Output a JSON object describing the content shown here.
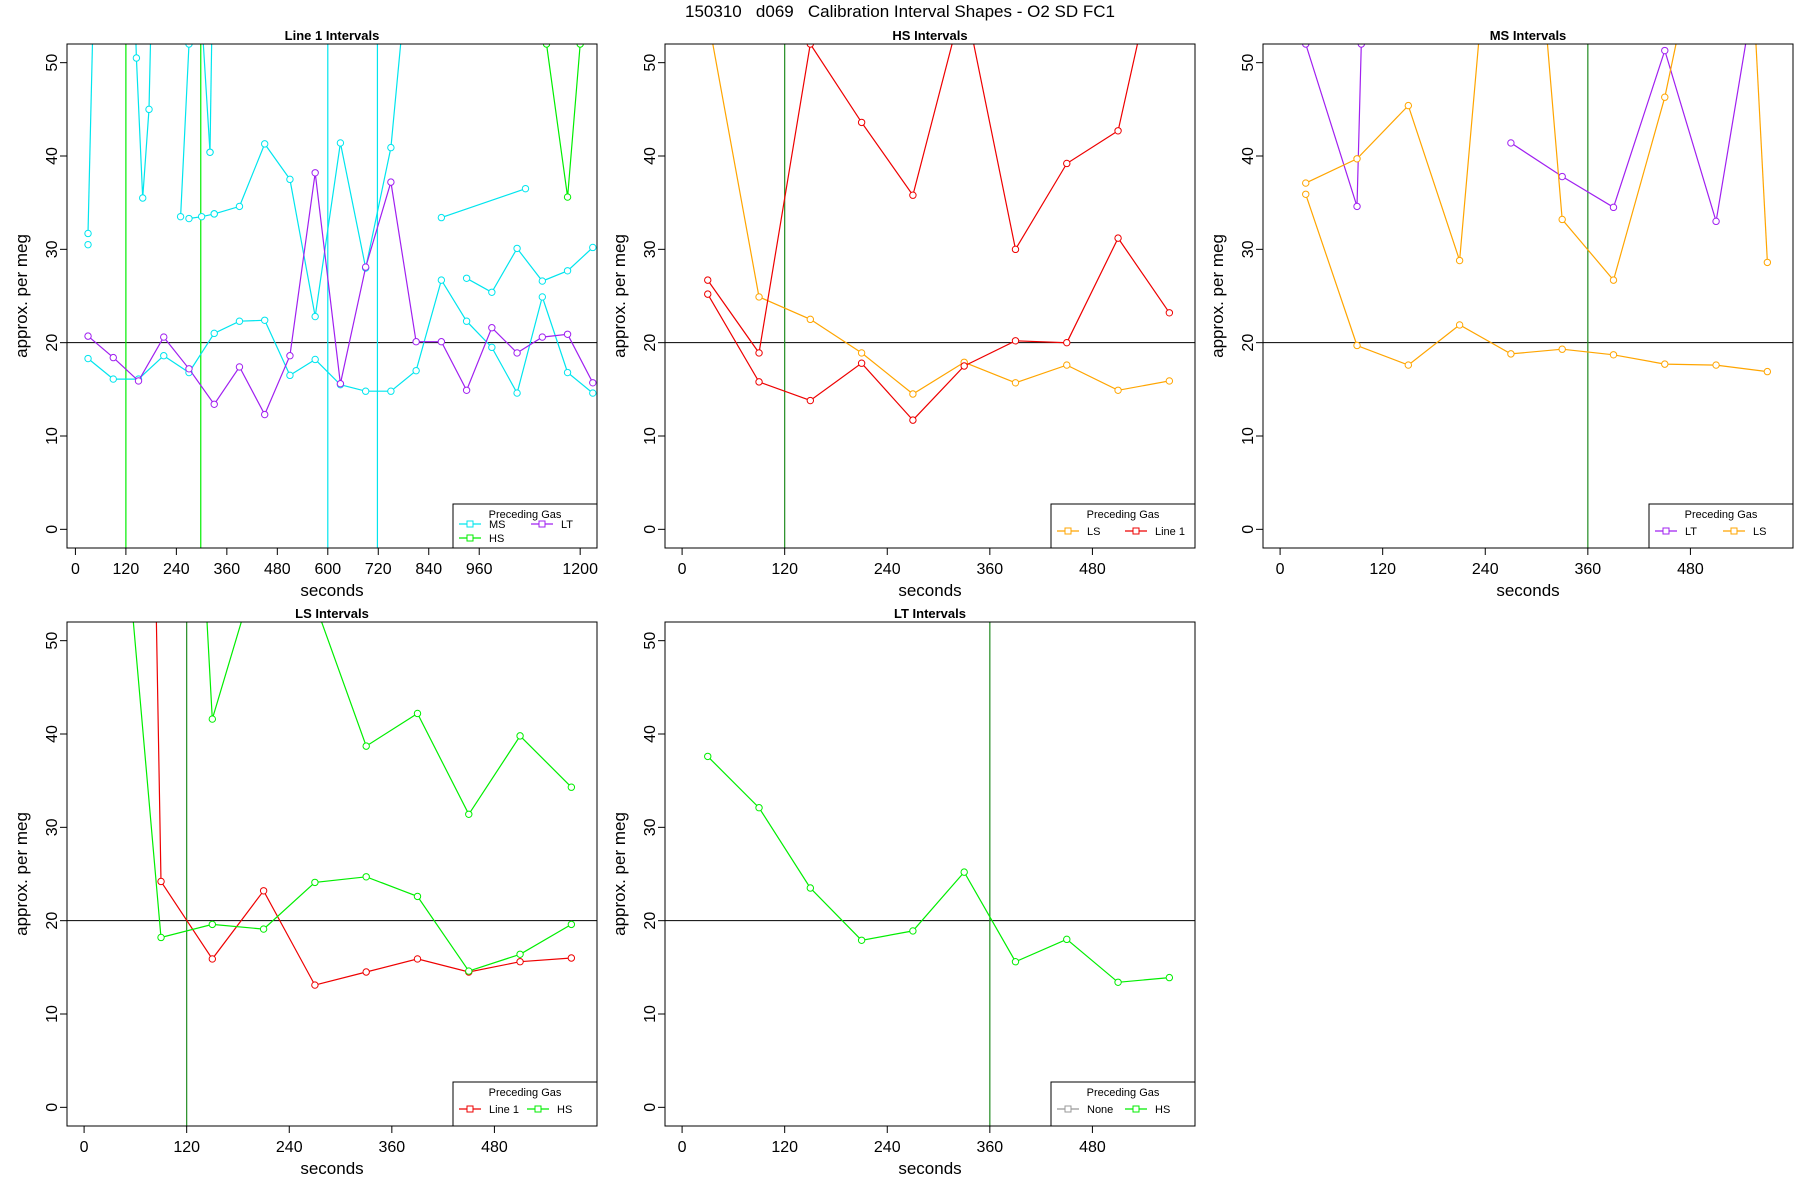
{
  "title": "150310   d069   Calibration Interval Shapes - O2 SD FC1",
  "colors": {
    "MS": "#00e5ee",
    "HS": "#00ee00",
    "LT": "#a020f0",
    "LS": "#ffa500",
    "Line 1": "#ee0000",
    "None": "#999999",
    "reference": "#000000",
    "marker": "#228b22"
  },
  "chart_data": [
    {
      "type": "line",
      "title": "Line 1 Intervals",
      "xlabel": "seconds",
      "ylabel": "approx. per meg",
      "xlim": [
        -20,
        1240
      ],
      "ylim": [
        -2,
        52
      ],
      "xticks": [
        0,
        120,
        240,
        360,
        480,
        600,
        720,
        840,
        960,
        1200
      ],
      "yticks": [
        0,
        10,
        20,
        30,
        40,
        50
      ],
      "hline": 20,
      "legend": {
        "title": "Preceding Gas",
        "entries": [
          "MS",
          "LT",
          "HS"
        ]
      },
      "vlines": [
        {
          "x": 120,
          "series": "HS"
        },
        {
          "x": 298,
          "series": "HS"
        },
        {
          "x": 600,
          "series": "MS"
        },
        {
          "x": 718,
          "series": "MS"
        }
      ],
      "series": [
        {
          "name": "MS",
          "x": [
            30,
            50
          ],
          "y": [
            31.7,
            70
          ]
        },
        {
          "name": "MS",
          "x": [
            125,
            145,
            160,
            175,
            180
          ],
          "y": [
            80,
            50.5,
            35.5,
            45,
            55
          ]
        },
        {
          "name": "MS",
          "x": [
            250,
            270,
            300,
            320
          ],
          "y": [
            33.5,
            52,
            55,
            40.4
          ]
        },
        {
          "name": "MS",
          "x": [
            320,
            330
          ],
          "y": [
            40.4,
            70
          ]
        },
        {
          "name": "MS",
          "x": [
            30,
            90,
            150,
            210,
            270,
            330,
            390,
            450,
            510,
            570,
            630,
            690,
            750,
            810,
            870,
            930,
            990,
            1050,
            1110,
            1170,
            1230
          ],
          "y": [
            18.3,
            16.1,
            16.1,
            18.6,
            16.8,
            21.0,
            22.3,
            22.4,
            16.5,
            18.2,
            15.5,
            14.8,
            14.8,
            17.0,
            26.7,
            22.3,
            19.5,
            14.6,
            24.9,
            16.8,
            14.6
          ]
        },
        {
          "name": "MS",
          "x": [
            30
          ],
          "y": [
            30.5
          ]
        },
        {
          "name": "MS",
          "x": [
            330,
            300,
            270
          ],
          "y": [
            33.8,
            33.5,
            33.3
          ]
        },
        {
          "name": "MS",
          "x": [
            330,
            390,
            450,
            510,
            570,
            630,
            690,
            750,
            790
          ],
          "y": [
            33.8,
            34.6,
            41.3,
            37.5,
            22.8,
            41.4,
            28.0,
            40.9,
            60
          ]
        },
        {
          "name": "MS",
          "x": [
            870,
            1070
          ],
          "y": [
            33.4,
            36.5
          ]
        },
        {
          "name": "MS",
          "x": [
            930,
            990,
            1050,
            1110,
            1170,
            1230
          ],
          "y": [
            26.9,
            25.4,
            30.1,
            26.6,
            27.7,
            30.2
          ]
        },
        {
          "name": "HS",
          "x": [
            1120,
            1170,
            1200
          ],
          "y": [
            52,
            35.6,
            52
          ]
        },
        {
          "name": "LT",
          "x": [
            30,
            90,
            150,
            210,
            270,
            330,
            390,
            450,
            510,
            570,
            630,
            690,
            750,
            810,
            870,
            930,
            990,
            1050,
            1110,
            1170,
            1230
          ],
          "y": [
            20.7,
            18.4,
            15.9,
            20.6,
            17.2,
            13.4,
            17.4,
            12.3,
            18.6,
            38.2,
            15.6,
            28.1,
            37.2,
            20.1,
            20.1,
            14.9,
            21.6,
            18.9,
            20.6,
            20.9,
            15.7
          ]
        }
      ]
    },
    {
      "type": "line",
      "title": "HS Intervals",
      "xlabel": "seconds",
      "ylabel": "approx. per meg",
      "xlim": [
        -20,
        600
      ],
      "ylim": [
        -2,
        52
      ],
      "xticks": [
        0,
        120,
        240,
        360,
        480
      ],
      "yticks": [
        0,
        10,
        20,
        30,
        40,
        50
      ],
      "hline": 20,
      "legend": {
        "title": "Preceding Gas",
        "entries": [
          "LS",
          "Line 1"
        ]
      },
      "vlines": [
        {
          "x": 120,
          "series": "marker"
        }
      ],
      "series": [
        {
          "name": "LS",
          "x": [
            30,
            90,
            150,
            210,
            270,
            330,
            390,
            450,
            510,
            570
          ],
          "y": [
            55,
            24.9,
            22.5,
            18.9,
            14.5,
            17.9,
            15.7,
            17.6,
            14.9,
            15.9
          ]
        },
        {
          "name": "Line 1",
          "x": [
            30,
            90,
            150,
            210,
            270,
            330,
            390,
            450,
            510,
            570
          ],
          "y": [
            25.2,
            15.8,
            13.8,
            17.8,
            11.7,
            17.5,
            20.2,
            20.0,
            31.2,
            23.2
          ]
        },
        {
          "name": "Line 1",
          "x": [
            30,
            90,
            150,
            210,
            270,
            330,
            390,
            450,
            510,
            540
          ],
          "y": [
            26.7,
            18.9,
            52,
            43.6,
            35.8,
            57,
            30.0,
            39.2,
            42.7,
            55
          ]
        }
      ]
    },
    {
      "type": "line",
      "title": "MS Intervals",
      "xlabel": "seconds",
      "ylabel": "approx. per meg",
      "xlim": [
        -20,
        600
      ],
      "ylim": [
        -2,
        52
      ],
      "xticks": [
        0,
        120,
        240,
        360,
        480
      ],
      "yticks": [
        0,
        10,
        20,
        30,
        40,
        50
      ],
      "hline": 20,
      "legend": {
        "title": "Preceding Gas",
        "entries": [
          "LT",
          "LS"
        ]
      },
      "vlines": [
        {
          "x": 360,
          "series": "marker"
        }
      ],
      "series": [
        {
          "name": "LT",
          "x": [
            30,
            90,
            95
          ],
          "y": [
            52,
            34.6,
            52
          ]
        },
        {
          "name": "LT",
          "x": [
            270,
            330,
            390,
            450,
            510,
            550
          ],
          "y": [
            41.4,
            37.8,
            34.5,
            51.3,
            33.0,
            55
          ]
        },
        {
          "name": "LS",
          "x": [
            30,
            90,
            150,
            210,
            270,
            330,
            390,
            450,
            510,
            570
          ],
          "y": [
            35.9,
            19.7,
            17.6,
            21.9,
            18.8,
            19.3,
            18.7,
            17.7,
            17.6,
            16.9
          ]
        },
        {
          "name": "LS",
          "x": [
            30,
            90,
            150,
            210,
            235
          ],
          "y": [
            37.1,
            39.7,
            45.4,
            28.8,
            55
          ]
        },
        {
          "name": "LS",
          "x": [
            310,
            330,
            390,
            450,
            470
          ],
          "y": [
            55,
            33.2,
            26.7,
            46.3,
            55
          ]
        },
        {
          "name": "LS",
          "x": [
            555,
            570
          ],
          "y": [
            55,
            28.6
          ]
        }
      ]
    },
    {
      "type": "line",
      "title": "LS Intervals",
      "xlabel": "seconds",
      "ylabel": "approx. per meg",
      "xlim": [
        -20,
        600
      ],
      "ylim": [
        -2,
        52
      ],
      "xticks": [
        0,
        120,
        240,
        360,
        480
      ],
      "yticks": [
        0,
        10,
        20,
        30,
        40,
        50
      ],
      "hline": 20,
      "legend": {
        "title": "Preceding Gas",
        "entries": [
          "Line 1",
          "HS"
        ]
      },
      "vlines": [
        {
          "x": 120,
          "series": "marker"
        }
      ],
      "series": [
        {
          "name": "Line 1",
          "x": [
            84,
            90,
            150,
            210,
            270,
            330,
            390,
            450,
            510,
            570
          ],
          "y": [
            55,
            24.2,
            15.9,
            23.2,
            13.1,
            14.5,
            15.9,
            14.5,
            15.6,
            16.0
          ]
        },
        {
          "name": "HS",
          "x": [
            50,
            90,
            150,
            210,
            270,
            330,
            390,
            450,
            510,
            570
          ],
          "y": [
            60,
            18.2,
            19.6,
            19.1,
            24.1,
            24.7,
            22.6,
            14.6,
            16.4,
            19.6
          ]
        },
        {
          "name": "HS",
          "x": [
            142,
            150,
            210,
            270,
            330,
            390,
            450,
            510,
            570
          ],
          "y": [
            55,
            41.6,
            60,
            54,
            38.7,
            42.2,
            31.4,
            39.8,
            34.3
          ]
        }
      ]
    },
    {
      "type": "line",
      "title": "LT Intervals",
      "xlabel": "seconds",
      "ylabel": "approx. per meg",
      "xlim": [
        -20,
        600
      ],
      "ylim": [
        -2,
        52
      ],
      "xticks": [
        0,
        120,
        240,
        360,
        480
      ],
      "yticks": [
        0,
        10,
        20,
        30,
        40,
        50
      ],
      "hline": 20,
      "legend": {
        "title": "Preceding Gas",
        "entries": [
          "None",
          "HS"
        ]
      },
      "vlines": [
        {
          "x": 360,
          "series": "marker"
        }
      ],
      "series": [
        {
          "name": "HS",
          "x": [
            30,
            90,
            150,
            210,
            270,
            330,
            390,
            450,
            510,
            570
          ],
          "y": [
            37.6,
            32.1,
            23.5,
            17.9,
            18.9,
            25.2,
            15.6,
            18.0,
            13.4,
            13.9
          ]
        }
      ]
    }
  ]
}
